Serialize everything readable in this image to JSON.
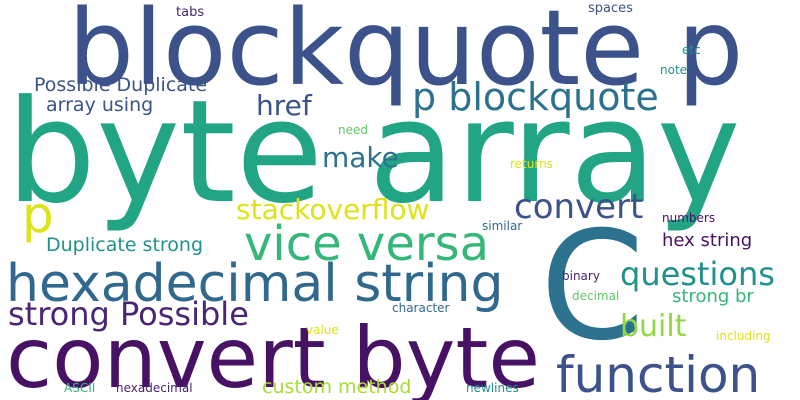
{
  "colors": {
    "background": "#ffffff",
    "navy": "#3b528b",
    "dark_purple": "#471164",
    "purple": "#482575",
    "teal": "#21918c",
    "blue_teal": "#2c728e",
    "green": "#35b779",
    "light_green": "#5ec962",
    "lime": "#90d743",
    "yellow": "#dde318",
    "slate": "#31688e"
  },
  "words": {
    "byte_array": "byte array",
    "blockquote_p": "blockquote p",
    "convert_byte": "convert byte",
    "c": "C",
    "hexadecimal_string": "hexadecimal string",
    "vice_versa": "vice versa",
    "function": "function",
    "p_blockquote": "p blockquote",
    "strong_possible": "strong Possible",
    "convert": "convert",
    "questions": "questions",
    "stackoverflow": "stackoverflow",
    "p": "p",
    "make": "make",
    "href": "href",
    "built": "built",
    "possible_duplicate": "Possible Duplicate",
    "array_using": "array using",
    "duplicate_strong": "Duplicate strong",
    "custom_method": "custom method",
    "hex_string": "hex string",
    "strong_br": "strong br",
    "tabs": "tabs",
    "spaces": "spaces",
    "etc": "etc",
    "note": "note",
    "need": "need",
    "returns": "returns",
    "similar": "similar",
    "numbers": "numbers",
    "binary": "binary",
    "decimal": "decimal",
    "character": "character",
    "value": "value",
    "including": "including",
    "ascii": "ASCII",
    "hexadecimal": "hexadecimal",
    "newlines": "newlines"
  }
}
